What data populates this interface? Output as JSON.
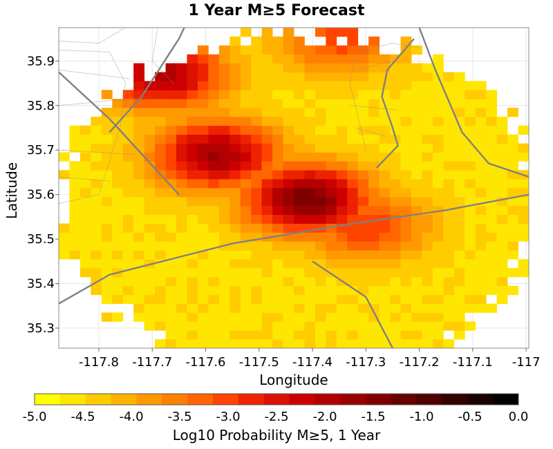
{
  "chart_data": {
    "type": "heatmap",
    "title": "1 Year M≥5 Forecast",
    "xlabel": "Longitude",
    "ylabel": "Latitude",
    "xlim": [
      -117.875,
      -116.995
    ],
    "ylim": [
      35.255,
      35.975
    ],
    "x_ticks": [
      -117.8,
      -117.7,
      -117.6,
      -117.5,
      -117.4,
      -117.3,
      -117.2,
      -117.1,
      -117.0
    ],
    "x_tick_labels": [
      "-117.8",
      "-117.7",
      "-117.6",
      "-117.5",
      "-117.4",
      "-117.3",
      "-117.2",
      "-117.1",
      "-117"
    ],
    "y_ticks": [
      35.3,
      35.4,
      35.5,
      35.6,
      35.7,
      35.8,
      35.9
    ],
    "y_tick_labels": [
      "35.3",
      "35.4",
      "35.5",
      "35.6",
      "35.7",
      "35.8",
      "35.9"
    ],
    "grid": true,
    "cell_size_deg": 0.02,
    "region": {
      "center_lon": -117.42,
      "center_lat": 35.58,
      "radius_lon_deg": 0.45,
      "radius_lat_deg": 0.38
    },
    "value_range": [
      -5.0,
      0.0
    ],
    "value_model": {
      "background": -4.6,
      "peaks": [
        {
          "lon": -117.41,
          "lat": 35.59,
          "value": -1.4
        },
        {
          "lon": -117.58,
          "lat": 35.69,
          "value": -1.8
        },
        {
          "lon": -117.68,
          "lat": 35.87,
          "value": -1.9
        },
        {
          "lon": -117.3,
          "lat": 35.53,
          "value": -2.9
        },
        {
          "lon": -117.35,
          "lat": 35.95,
          "value": -3.0
        }
      ]
    },
    "colorbar": {
      "label": "Log10 Probability M≥5, 1 Year",
      "min": -5.0,
      "max": 0.0,
      "tick_labels": [
        "-5.0",
        "-4.5",
        "-4.0",
        "-3.5",
        "-3.0",
        "-2.5",
        "-2.0",
        "-1.5",
        "-1.0",
        "-0.5",
        "0.0"
      ],
      "colors": [
        "#ffff00",
        "#ffe600",
        "#ffcc00",
        "#ffb300",
        "#ff9900",
        "#ff8000",
        "#ff6600",
        "#ff4400",
        "#ee2200",
        "#dd1100",
        "#cc0000",
        "#b30000",
        "#990000",
        "#800000",
        "#660000",
        "#4d0000",
        "#330000",
        "#1a0000",
        "#000000"
      ]
    },
    "fault_lines": [
      [
        [
          -117.875,
          35.355
        ],
        [
          -117.78,
          35.42
        ],
        [
          -117.55,
          35.49
        ],
        [
          -117.35,
          35.53
        ],
        [
          -117.15,
          35.565
        ],
        [
          -116.995,
          35.6
        ]
      ],
      [
        [
          -117.875,
          35.875
        ],
        [
          -117.78,
          35.77
        ],
        [
          -117.65,
          35.6
        ]
      ],
      [
        [
          -117.78,
          35.74
        ],
        [
          -117.72,
          35.82
        ],
        [
          -117.65,
          35.95
        ],
        [
          -117.64,
          35.975
        ]
      ],
      [
        [
          -117.4,
          35.45
        ],
        [
          -117.3,
          35.37
        ],
        [
          -117.25,
          35.255
        ]
      ],
      [
        [
          -117.2,
          35.975
        ],
        [
          -117.17,
          35.88
        ],
        [
          -117.12,
          35.74
        ],
        [
          -117.07,
          35.67
        ],
        [
          -116.995,
          35.64
        ]
      ],
      [
        [
          -117.21,
          35.95
        ],
        [
          -117.26,
          35.88
        ],
        [
          -117.27,
          35.82
        ],
        [
          -117.25,
          35.75
        ],
        [
          -117.24,
          35.71
        ],
        [
          -117.28,
          35.66
        ]
      ]
    ],
    "boundary_lines": [
      [
        [
          -117.875,
          35.945
        ],
        [
          -117.8,
          35.94
        ],
        [
          -117.75,
          35.975
        ]
      ],
      [
        [
          -117.875,
          35.925
        ],
        [
          -117.78,
          35.92
        ],
        [
          -117.75,
          35.85
        ],
        [
          -117.76,
          35.75
        ],
        [
          -117.8,
          35.6
        ],
        [
          -117.875,
          35.58
        ]
      ],
      [
        [
          -117.875,
          35.88
        ],
        [
          -117.74,
          35.86
        ]
      ],
      [
        [
          -117.875,
          35.8
        ],
        [
          -117.7,
          35.82
        ]
      ],
      [
        [
          -117.875,
          35.7
        ],
        [
          -117.73,
          35.69
        ]
      ],
      [
        [
          -117.875,
          35.64
        ],
        [
          -117.78,
          35.63
        ]
      ],
      [
        [
          -117.69,
          35.975
        ],
        [
          -117.7,
          35.9
        ],
        [
          -117.66,
          35.85
        ]
      ],
      [
        [
          -117.33,
          35.85
        ],
        [
          -117.32,
          35.92
        ],
        [
          -117.25,
          35.94
        ],
        [
          -117.2,
          35.93
        ]
      ],
      [
        [
          -117.32,
          35.88
        ],
        [
          -117.25,
          35.9
        ]
      ],
      [
        [
          -117.33,
          35.8
        ],
        [
          -117.24,
          35.79
        ]
      ],
      [
        [
          -117.32,
          35.75
        ],
        [
          -117.26,
          35.73
        ]
      ],
      [
        [
          -117.3,
          35.7
        ],
        [
          -117.33,
          35.85
        ]
      ]
    ],
    "border_color": "#808080"
  }
}
